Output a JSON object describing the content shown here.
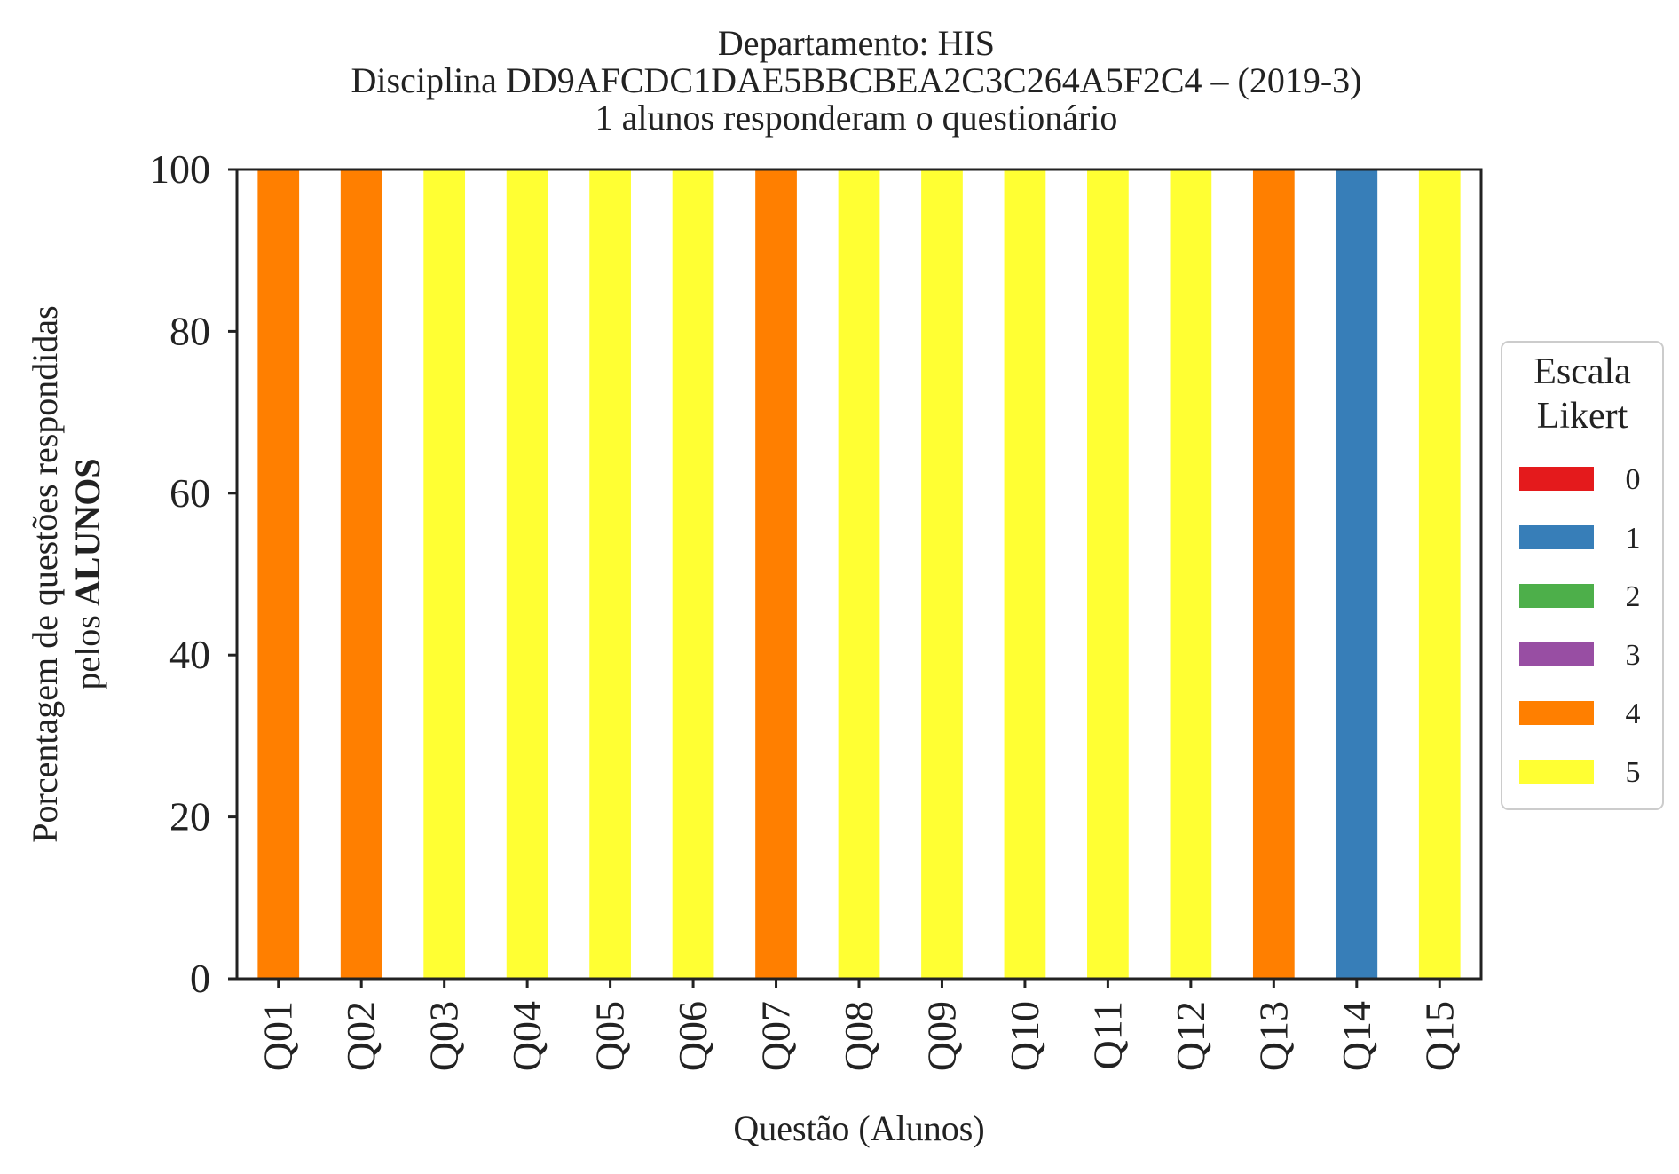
{
  "chart_data": {
    "type": "bar",
    "stacked": true,
    "title_lines": [
      "Departamento: HIS",
      "Disciplina DD9AFCDC1DAE5BBCBEA2C3C264A5F2C4 – (2019-3)",
      "1 alunos responderam o questionário"
    ],
    "xlabel": "Questão (Alunos)",
    "ylabel_line1": "Porcentagem de questões respondidas",
    "ylabel_line2_prefix": "pelos ",
    "ylabel_line2_bold": "ALUNOS",
    "ylim": [
      0,
      100
    ],
    "yticks": [
      0,
      20,
      40,
      60,
      80,
      100
    ],
    "grid": false,
    "legend_position": "right-center",
    "legend_title_lines": [
      "Escala",
      "Likert"
    ],
    "categories": [
      "Q01",
      "Q02",
      "Q03",
      "Q04",
      "Q05",
      "Q06",
      "Q07",
      "Q08",
      "Q09",
      "Q10",
      "Q11",
      "Q12",
      "Q13",
      "Q14",
      "Q15"
    ],
    "series": [
      {
        "name": "0",
        "color": "#e41a1c",
        "values": [
          0,
          0,
          0,
          0,
          0,
          0,
          0,
          0,
          0,
          0,
          0,
          0,
          0,
          0,
          0
        ]
      },
      {
        "name": "1",
        "color": "#377eb8",
        "values": [
          0,
          0,
          0,
          0,
          0,
          0,
          0,
          0,
          0,
          0,
          0,
          0,
          0,
          100,
          0
        ]
      },
      {
        "name": "2",
        "color": "#4daf4a",
        "values": [
          0,
          0,
          0,
          0,
          0,
          0,
          0,
          0,
          0,
          0,
          0,
          0,
          0,
          0,
          0
        ]
      },
      {
        "name": "3",
        "color": "#984ea3",
        "values": [
          0,
          0,
          0,
          0,
          0,
          0,
          0,
          0,
          0,
          0,
          0,
          0,
          0,
          0,
          0
        ]
      },
      {
        "name": "4",
        "color": "#ff7f00",
        "values": [
          100,
          100,
          0,
          0,
          0,
          0,
          100,
          0,
          0,
          0,
          0,
          0,
          100,
          0,
          0
        ]
      },
      {
        "name": "5",
        "color": "#ffff33",
        "values": [
          0,
          0,
          100,
          100,
          100,
          100,
          0,
          100,
          100,
          100,
          100,
          100,
          0,
          0,
          100
        ]
      }
    ]
  }
}
